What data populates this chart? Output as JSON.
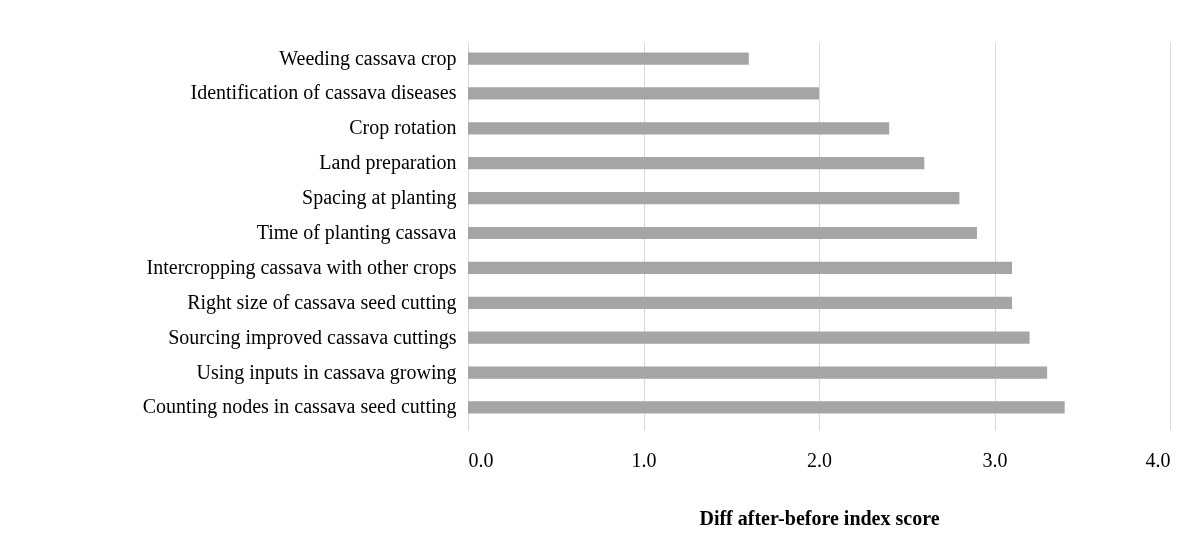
{
  "chart_data": {
    "type": "bar",
    "orientation": "horizontal",
    "xlabel": "Diff after-before index score",
    "categories": [
      "Weeding cassava crop",
      "Identification of cassava diseases",
      "Crop rotation",
      "Land preparation",
      "Spacing at planting",
      "Time of planting cassava",
      "Intercropping cassava with other crops",
      "Right size of cassava seed cutting",
      "Sourcing  improved cassava cuttings",
      "Using inputs in cassava growing",
      "Counting nodes in cassava seed cutting"
    ],
    "values": [
      1.6,
      2.0,
      2.4,
      2.6,
      2.8,
      2.9,
      3.1,
      3.1,
      3.2,
      3.3,
      3.4
    ],
    "color": "#a5a5a5",
    "xlim": [
      0,
      4
    ],
    "xticks": [
      {
        "value": 0,
        "label": "0.0"
      },
      {
        "value": 1,
        "label": "1.0"
      },
      {
        "value": 2,
        "label": "2.0"
      },
      {
        "value": 3,
        "label": "3.0"
      },
      {
        "value": 4,
        "label": "4.0"
      }
    ],
    "grid": "x"
  }
}
